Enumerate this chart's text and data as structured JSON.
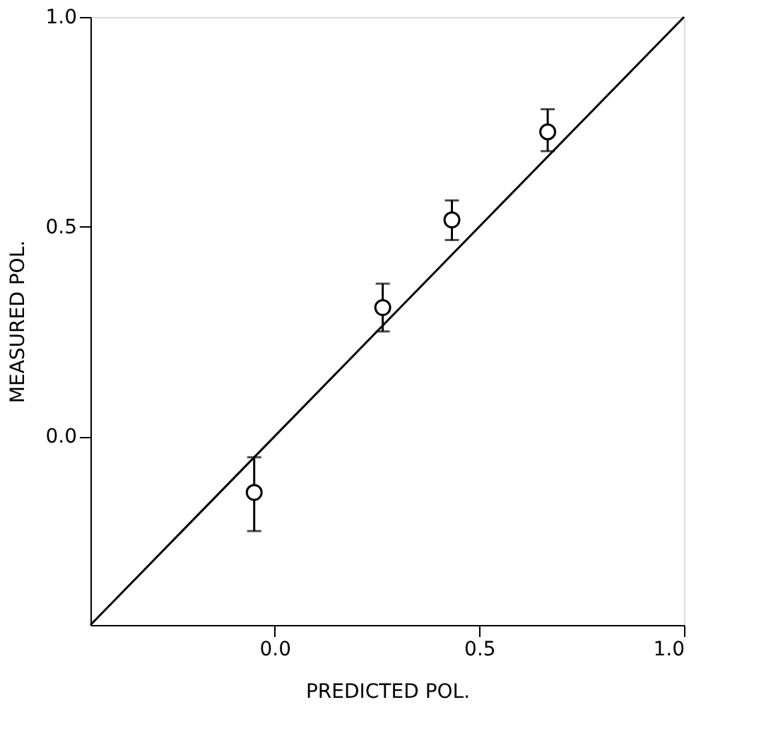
{
  "chart_data": {
    "type": "scatter",
    "xlabel": "PREDICTED POL.",
    "ylabel": "MEASURED POL.",
    "xlim": [
      -0.45,
      1.0
    ],
    "ylim": [
      -0.45,
      1.0
    ],
    "xticks": [
      {
        "value": 0,
        "label": "0.0"
      },
      0.5,
      {
        "value": 1,
        "label": "1.0"
      }
    ],
    "yticks": [
      {
        "value": 0,
        "label": "0.0"
      },
      0.5,
      {
        "value": 1,
        "label": "1.0"
      }
    ],
    "grid": false,
    "series": [
      {
        "color": "#000000",
        "marker": "circle",
        "x": [
          -0.05,
          0.264,
          0.433,
          0.667
        ],
        "values": [
          -0.134,
          0.307,
          0.516,
          0.726
        ],
        "errors": [
          [
            -0.226,
            -0.05
          ],
          [
            0.25,
            0.364
          ],
          [
            0.468,
            0.5625
          ],
          [
            0.68,
            0.78
          ]
        ]
      },
      {
        "type": "line",
        "color": "#000000",
        "line_style": "solid",
        "marker": "none",
        "x": [
          -0.45,
          1.0
        ],
        "values": [
          -0.45,
          1.0
        ]
      }
    ]
  }
}
